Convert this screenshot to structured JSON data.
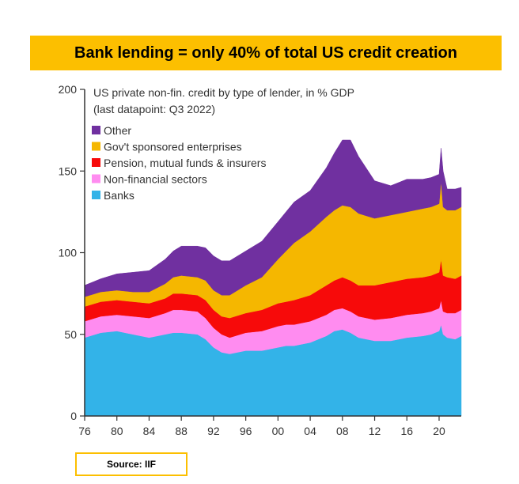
{
  "headline": "Bank lending = only 40% of total US credit creation",
  "source": "Source: IIF",
  "chart_data": {
    "type": "area",
    "stacked": true,
    "subtitle_lines": [
      "US private non-fin. credit by type of lender, in % GDP",
      "(last datapoint: Q3 2022)"
    ],
    "xlabel": "",
    "ylabel": "",
    "ylim": [
      0,
      200
    ],
    "xlim": [
      1976,
      2022.75
    ],
    "y_ticks": [
      0,
      50,
      100,
      150,
      200
    ],
    "x_tick_labels": [
      "76",
      "80",
      "84",
      "88",
      "92",
      "96",
      "00",
      "04",
      "08",
      "12",
      "16",
      "20"
    ],
    "x_tick_years": [
      1976,
      1980,
      1984,
      1988,
      1992,
      1996,
      2000,
      2004,
      2008,
      2012,
      2016,
      2020
    ],
    "legend_position": "top-left",
    "x": [
      1976,
      1978,
      1980,
      1982,
      1984,
      1986,
      1987,
      1988,
      1990,
      1991,
      1992,
      1993,
      1994,
      1996,
      1998,
      2000,
      2001,
      2002,
      2004,
      2006,
      2007,
      2008,
      2009,
      2010,
      2012,
      2014,
      2016,
      2018,
      2019,
      2020,
      2020.25,
      2020.5,
      2021,
      2022,
      2022.75
    ],
    "series": [
      {
        "name": "Banks",
        "color": "#33b3e8",
        "values": [
          48,
          51,
          52,
          50,
          48,
          50,
          51,
          51,
          50,
          47,
          42,
          39,
          38,
          40,
          40,
          42,
          43,
          43,
          45,
          49,
          52,
          53,
          51,
          48,
          46,
          46,
          48,
          49,
          50,
          52,
          56,
          50,
          48,
          47,
          49
        ]
      },
      {
        "name": "Non-financial sectors",
        "color": "#ff8cf0",
        "values": [
          10,
          10,
          10,
          11,
          12,
          13,
          14,
          14,
          14,
          13,
          12,
          11,
          10,
          11,
          12,
          13,
          13,
          13,
          13,
          13,
          13,
          13,
          13,
          13,
          13,
          14,
          14,
          14,
          14,
          14,
          15,
          14,
          15,
          16,
          16
        ]
      },
      {
        "name": "Pension, mutual funds & insurers",
        "color": "#f70a0a",
        "values": [
          9,
          9,
          9,
          9,
          9,
          9,
          10,
          10,
          10,
          11,
          11,
          11,
          12,
          12,
          13,
          14,
          14,
          15,
          16,
          18,
          18,
          19,
          19,
          19,
          21,
          22,
          22,
          22,
          22,
          22,
          25,
          22,
          22,
          21,
          21
        ]
      },
      {
        "name": "Gov't sponsored enterprises",
        "color": "#f5b700",
        "values": [
          6,
          6,
          6,
          6,
          7,
          9,
          10,
          11,
          11,
          12,
          12,
          13,
          14,
          17,
          20,
          27,
          31,
          35,
          39,
          42,
          43,
          44,
          45,
          44,
          41,
          41,
          41,
          42,
          42,
          42,
          48,
          42,
          41,
          42,
          42
        ]
      },
      {
        "name": "Other",
        "color": "#7030a0",
        "values": [
          7,
          8,
          10,
          12,
          13,
          15,
          16,
          18,
          19,
          20,
          21,
          21,
          21,
          21,
          22,
          23,
          24,
          25,
          25,
          30,
          35,
          40,
          41,
          35,
          23,
          18,
          20,
          18,
          18,
          18,
          20,
          22,
          13,
          13,
          12
        ]
      }
    ]
  }
}
